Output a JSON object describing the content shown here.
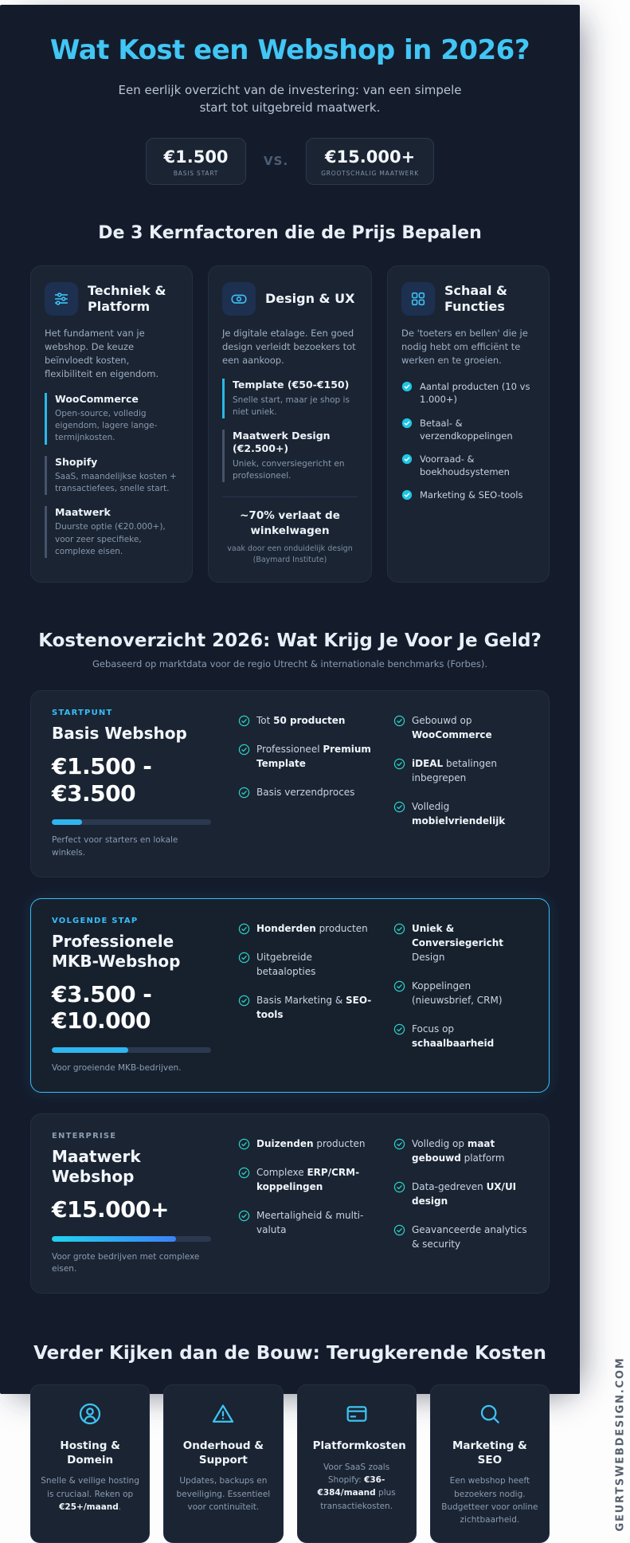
{
  "brand": {
    "vertical_text": "GEURTSWEBDESIGN.COM"
  },
  "colors": {
    "accent_cyan": "#41c6f5",
    "accent_teal": "#2dd0c4",
    "accent_blue": "#3b82f6",
    "panel_bg": "#141c2c",
    "card_bg": "#1a2433",
    "page_bg": "#ffffff"
  },
  "header": {
    "title": "Wat Kost een Webshop in 2026?",
    "subtitle": "Een eerlijk overzicht van de investering: van een simpele start tot uitgebreid maatwerk.",
    "comparison": {
      "left_price": "€1.500",
      "left_label": "BASIS START",
      "vs": "VS.",
      "right_price": "€15.000+",
      "right_label": "GROOTSCHALIG MAATWERK"
    }
  },
  "factors": {
    "heading": "De 3 Kernfactoren die de Prijs Bepalen",
    "cards": [
      {
        "icon": "sliders-icon",
        "title": "Techniek & Platform",
        "description": "Het fundament van je webshop. De keuze beïnvloedt kosten, flexibiliteit en eigendom.",
        "items": [
          {
            "name": "WooCommerce",
            "text": "Open-source, volledig eigendom, lagere lange-termijnkosten."
          },
          {
            "name": "Shopify",
            "text": "SaaS, maandelijkse kosten + transactiefees, snelle start."
          },
          {
            "name": "Maatwerk",
            "text": "Duurste optie (€20.000+), voor zeer specifieke, complexe eisen."
          }
        ]
      },
      {
        "icon": "banknote-icon",
        "title": "Design & UX",
        "description": "Je digitale etalage. Een goed design verleidt bezoekers tot een aankoop.",
        "items": [
          {
            "name": "Template (€50-€150)",
            "text": "Snelle start, maar je shop is niet uniek."
          },
          {
            "name": "Maatwerk Design (€2.500+)",
            "text": "Uniek, conversiegericht en professioneel."
          }
        ],
        "callout_stat": "~70% verlaat de winkelwagen",
        "callout_note": "vaak door een onduidelijk design (Baymard Institute)"
      },
      {
        "icon": "grid-icon",
        "title": "Schaal & Functies",
        "description": "De 'toeters en bellen' die je nodig hebt om efficiënt te werken en te groeien.",
        "checks": [
          "Aantal producten (10 vs 1.000+)",
          "Betaal- & verzendkoppelingen",
          "Voorraad- & boekhoudsystemen",
          "Marketing & SEO-tools"
        ]
      }
    ]
  },
  "overview": {
    "heading": "Kostenoverzicht 2026: Wat Krijg Je Voor Je Geld?",
    "subheading": "Gebaseerd op marktdata voor de regio Utrecht & internationale benchmarks (Forbes).",
    "tiers": [
      {
        "tag": "STARTPUNT",
        "name": "Basis Webshop",
        "price": "€1.500 - €3.500",
        "progress": "19%",
        "footnote": "Perfect voor starters en lokale winkels.",
        "features": [
          "Tot **50 producten**",
          "Professioneel **Premium Template**",
          "Basis verzendproces",
          "Gebouwd op **WooCommerce**",
          "**iDEAL** betalingen inbegrepen",
          "Volledig **mobielvriendelijk**"
        ]
      },
      {
        "tag": "VOLGENDE STAP",
        "name": "Professionele MKB-Webshop",
        "price": "€3.500 - €10.000",
        "progress": "48%",
        "footnote": "Voor groeiende MKB-bedrijven.",
        "features": [
          "**Honderden** producten",
          "Uitgebreide betaalopties",
          "Basis Marketing & **SEO-tools**",
          "**Uniek & Conversiegericht** Design",
          "Koppelingen (nieuwsbrief, CRM)",
          "Focus op **schaalbaarheid**"
        ]
      },
      {
        "tag": "ENTERPRISE",
        "name": "Maatwerk Webshop",
        "price": "€15.000+",
        "progress": "78%",
        "footnote": "Voor grote bedrijven met complexe eisen.",
        "features": [
          "**Duizenden** producten",
          "Complexe **ERP/CRM-koppelingen**",
          "Meertaligheid & multi-valuta",
          "Volledig op **maat gebouwd** platform",
          "Data-gedreven **UX/UI design**",
          "Geavanceerde analytics & security"
        ]
      }
    ]
  },
  "recurring": {
    "heading": "Verder Kijken dan de Bouw: Terugkerende Kosten",
    "cards": [
      {
        "icon": "user-icon",
        "title": "Hosting & Domein",
        "text": "Snelle & veilige hosting is cruciaal. Reken op **€25+/maand**."
      },
      {
        "icon": "warning-icon",
        "title": "Onderhoud & Support",
        "text": "Updates, backups en beveiliging. Essentieel voor continuïteit."
      },
      {
        "icon": "credit-card-icon",
        "title": "Platformkosten",
        "text": "Voor SaaS zoals Shopify: **€36-€384/maand** plus transactiekosten."
      },
      {
        "icon": "search-icon",
        "title": "Marketing & SEO",
        "text": "Een webshop heeft bezoekers nodig. Budgetteer voor online zichtbaarheid."
      }
    ]
  }
}
